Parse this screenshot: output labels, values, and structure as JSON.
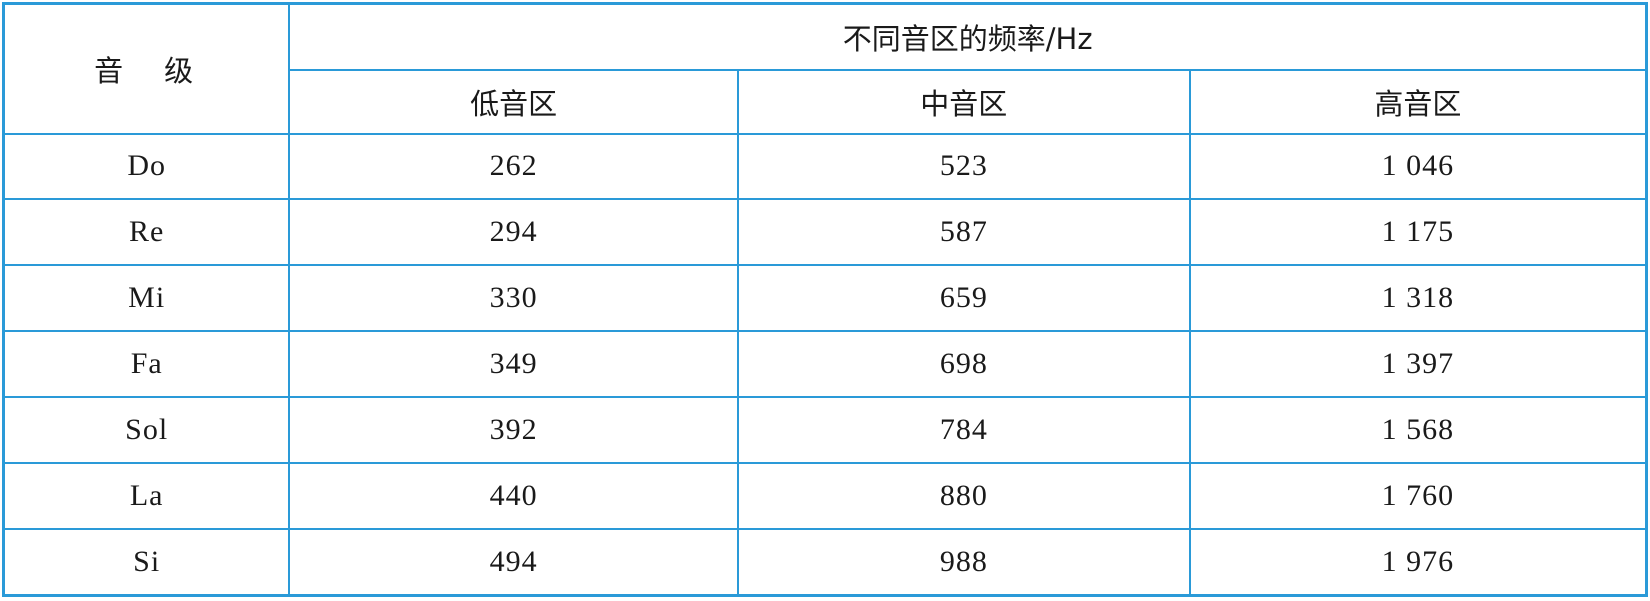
{
  "table": {
    "note_header": "音　级",
    "group_header": "不同音区的频率/Hz",
    "columns": [
      "低音区",
      "中音区",
      "高音区"
    ],
    "rows": [
      {
        "note": "Do",
        "values": [
          "262",
          "523",
          "1 046"
        ]
      },
      {
        "note": "Re",
        "values": [
          "294",
          "587",
          "1 175"
        ]
      },
      {
        "note": "Mi",
        "values": [
          "330",
          "659",
          "1 318"
        ]
      },
      {
        "note": "Fa",
        "values": [
          "349",
          "698",
          "1 397"
        ]
      },
      {
        "note": "Sol",
        "values": [
          "392",
          "784",
          "1 568"
        ]
      },
      {
        "note": "La",
        "values": [
          "440",
          "880",
          "1 760"
        ]
      },
      {
        "note": "Si",
        "values": [
          "494",
          "988",
          "1 976"
        ]
      }
    ],
    "line_color": "#2a9ad8"
  }
}
